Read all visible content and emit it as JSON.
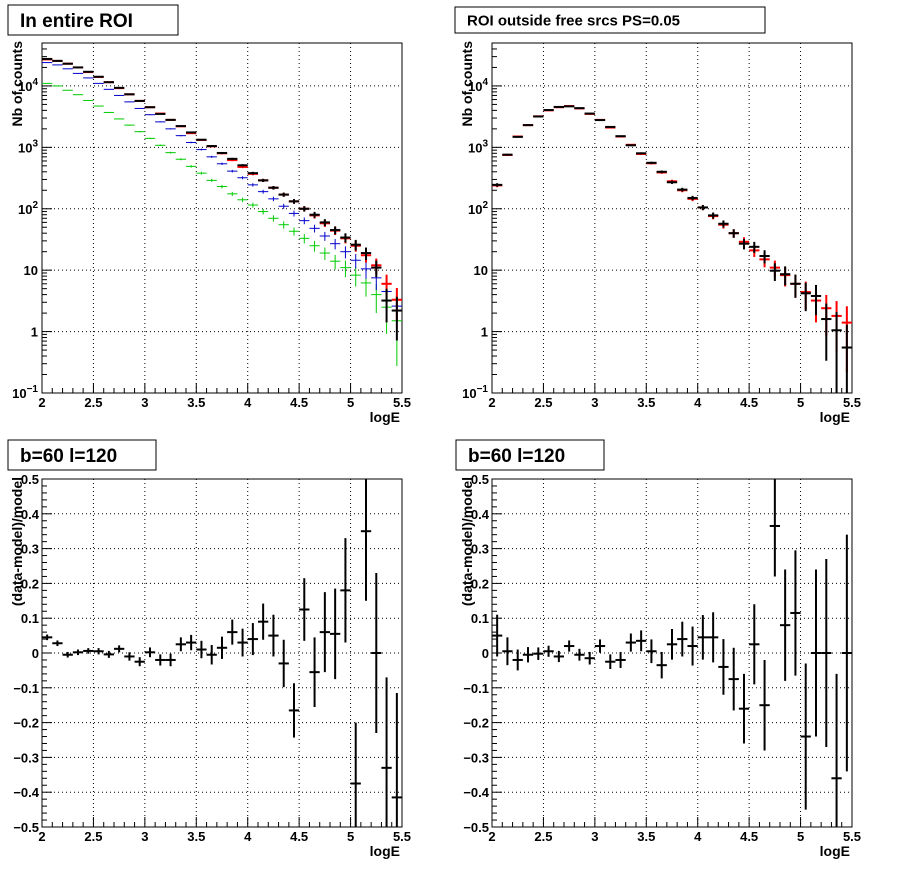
{
  "chart_data": [
    {
      "type": "scatter",
      "title": "In entire ROI",
      "xlabel": "logE",
      "ylabel": "Nb of counts",
      "xlim": [
        2,
        5.5
      ],
      "ylim": [
        0.1,
        50000
      ],
      "yscale": "log",
      "grid": true,
      "x_ticks": [
        "2",
        "2.5",
        "3",
        "3.5",
        "4",
        "4.5",
        "5",
        "5.5"
      ],
      "y_ticks": [
        {
          "value": 0.1,
          "mantissa": "10",
          "exp": "−1"
        },
        {
          "value": 1,
          "mantissa": "1",
          "exp": ""
        },
        {
          "value": 10,
          "mantissa": "10",
          "exp": ""
        },
        {
          "value": 100,
          "mantissa": "10",
          "exp": "2"
        },
        {
          "value": 1000,
          "mantissa": "10",
          "exp": "3"
        },
        {
          "value": 10000,
          "mantissa": "10",
          "exp": "4"
        }
      ],
      "x": [
        2.05,
        2.15,
        2.25,
        2.35,
        2.45,
        2.55,
        2.65,
        2.75,
        2.85,
        2.95,
        3.05,
        3.15,
        3.25,
        3.35,
        3.45,
        3.55,
        3.65,
        3.75,
        3.85,
        3.95,
        4.05,
        4.15,
        4.25,
        4.35,
        4.45,
        4.55,
        4.65,
        4.75,
        4.85,
        4.95,
        5.05,
        5.15,
        5.25,
        5.35,
        5.45
      ],
      "series": [
        {
          "color": "#00cc00",
          "errors": true,
          "values": [
            11000,
            10000,
            8500,
            7200,
            5800,
            4700,
            3700,
            2900,
            2300,
            1800,
            1400,
            1080,
            820,
            640,
            490,
            380,
            290,
            230,
            175,
            140,
            115,
            90,
            70,
            55,
            43,
            33,
            25,
            19,
            14,
            11,
            8.3,
            6.2,
            4.0,
            2.5,
            1.5
          ]
        },
        {
          "color": "#0000cc",
          "errors": true,
          "values": [
            24000,
            22000,
            19000,
            16000,
            13500,
            11000,
            8800,
            7000,
            5500,
            4300,
            3400,
            2600,
            2000,
            1550,
            1200,
            920,
            700,
            540,
            410,
            320,
            245,
            190,
            145,
            110,
            84,
            64,
            48,
            36,
            27,
            20,
            14.5,
            10.5,
            7.5,
            4.5,
            2.6
          ]
        },
        {
          "color": "#ff0000",
          "errors": true,
          "values": [
            27000,
            25500,
            23000,
            20000,
            16800,
            14000,
            11500,
            9200,
            7300,
            5700,
            4500,
            3550,
            2800,
            2200,
            1700,
            1320,
            1040,
            800,
            620,
            480,
            370,
            290,
            220,
            170,
            132,
            100,
            78,
            58,
            44,
            33,
            25,
            17.5,
            12.0,
            6.0,
            3.3
          ]
        },
        {
          "color": "#000000",
          "errors": true,
          "values": [
            27500,
            25600,
            23000,
            20000,
            17000,
            14100,
            11500,
            9300,
            7300,
            5700,
            4500,
            3500,
            2800,
            2220,
            1750,
            1330,
            1050,
            810,
            650,
            510,
            380,
            290,
            220,
            170,
            132,
            100,
            80,
            60,
            45,
            34,
            26,
            19,
            11.0,
            3.2,
            2.2
          ]
        }
      ]
    },
    {
      "type": "scatter",
      "title": "ROI outside free srcs PS=0.05",
      "xlabel": "logE",
      "ylabel": "Nb of counts",
      "xlim": [
        2,
        5.5
      ],
      "ylim": [
        0.1,
        50000
      ],
      "yscale": "log",
      "grid": true,
      "x_ticks": [
        "2",
        "2.5",
        "3",
        "3.5",
        "4",
        "4.5",
        "5",
        "5.5"
      ],
      "y_ticks": [
        {
          "value": 0.1,
          "mantissa": "10",
          "exp": "−1"
        },
        {
          "value": 1,
          "mantissa": "1",
          "exp": ""
        },
        {
          "value": 10,
          "mantissa": "10",
          "exp": ""
        },
        {
          "value": 100,
          "mantissa": "10",
          "exp": "2"
        },
        {
          "value": 1000,
          "mantissa": "10",
          "exp": "3"
        },
        {
          "value": 10000,
          "mantissa": "10",
          "exp": "4"
        }
      ],
      "x": [
        2.05,
        2.15,
        2.25,
        2.35,
        2.45,
        2.55,
        2.65,
        2.75,
        2.85,
        2.95,
        3.05,
        3.15,
        3.25,
        3.35,
        3.45,
        3.55,
        3.65,
        3.75,
        3.85,
        3.95,
        4.05,
        4.15,
        4.25,
        4.35,
        4.45,
        4.55,
        4.65,
        4.75,
        4.85,
        4.95,
        5.05,
        5.15,
        5.25,
        5.35,
        5.45
      ],
      "series": [
        {
          "color": "#ff0000",
          "errors": true,
          "values": [
            240,
            750,
            1500,
            2300,
            3200,
            4000,
            4500,
            4700,
            4300,
            3500,
            2800,
            2100,
            1500,
            1100,
            780,
            550,
            390,
            280,
            200,
            145,
            105,
            76,
            55,
            40,
            29,
            21,
            15,
            11,
            8.3,
            6.0,
            4.4,
            3.2,
            2.4,
            1.8,
            1.4
          ]
        },
        {
          "color": "#000000",
          "errors": true,
          "values": [
            245,
            760,
            1480,
            2300,
            3180,
            4050,
            4550,
            4650,
            4350,
            3550,
            2780,
            2150,
            1520,
            1080,
            800,
            560,
            400,
            270,
            205,
            150,
            105,
            78,
            57,
            40,
            27,
            24,
            17,
            9.8,
            8.6,
            6.0,
            4.2,
            3.8,
            1.6,
            1.05,
            0.55
          ]
        }
      ]
    },
    {
      "type": "scatter",
      "title": "b=60 l=120",
      "xlabel": "logE",
      "ylabel": "(data-model)/model",
      "xlim": [
        2,
        5.5
      ],
      "ylim": [
        -0.5,
        0.5
      ],
      "yscale": "linear",
      "grid": true,
      "x_ticks": [
        "2",
        "2.5",
        "3",
        "3.5",
        "4",
        "4.5",
        "5",
        "5.5"
      ],
      "y_ticks": [
        "−0.5",
        "−0.4",
        "−0.3",
        "−0.2",
        "−0.1",
        "0",
        "0.1",
        "0.2",
        "0.3",
        "0.4",
        "0.5"
      ],
      "x": [
        2.05,
        2.15,
        2.25,
        2.35,
        2.45,
        2.55,
        2.65,
        2.75,
        2.85,
        2.95,
        3.05,
        3.15,
        3.25,
        3.35,
        3.45,
        3.55,
        3.65,
        3.75,
        3.85,
        3.95,
        4.05,
        4.15,
        4.25,
        4.35,
        4.45,
        4.55,
        4.65,
        4.75,
        4.85,
        4.95,
        5.05,
        5.15,
        5.25,
        5.35,
        5.45
      ],
      "series": [
        {
          "color": "#000000",
          "errors": true,
          "values": [
            0.045,
            0.028,
            -0.005,
            0.002,
            0.006,
            0.005,
            -0.004,
            0.012,
            -0.01,
            -0.025,
            0.002,
            -0.02,
            -0.02,
            0.025,
            0.03,
            0.01,
            -0.005,
            0.015,
            0.06,
            0.03,
            0.04,
            0.09,
            0.05,
            -0.03,
            -0.165,
            0.125,
            -0.055,
            0.06,
            0.055,
            0.18,
            -0.375,
            0.35,
            0.0,
            -0.33,
            -0.415
          ],
          "err": [
            0.008,
            0.008,
            0.008,
            0.008,
            0.008,
            0.009,
            0.01,
            0.01,
            0.012,
            0.013,
            0.014,
            0.016,
            0.018,
            0.02,
            0.022,
            0.025,
            0.028,
            0.032,
            0.036,
            0.04,
            0.046,
            0.052,
            0.06,
            0.068,
            0.078,
            0.09,
            0.1,
            0.115,
            0.13,
            0.15,
            0.175,
            0.2,
            0.23,
            0.26,
            0.3
          ]
        }
      ]
    },
    {
      "type": "scatter",
      "title": "b=60 l=120",
      "xlabel": "logE",
      "ylabel": "(data-model)/model",
      "xlim": [
        2,
        5.5
      ],
      "ylim": [
        -0.5,
        0.5
      ],
      "yscale": "linear",
      "grid": true,
      "x_ticks": [
        "2",
        "2.5",
        "3",
        "3.5",
        "4",
        "4.5",
        "5",
        "5.5"
      ],
      "y_ticks": [
        "−0.5",
        "−0.4",
        "−0.3",
        "−0.2",
        "−0.1",
        "0",
        "0.1",
        "0.2",
        "0.3",
        "0.4",
        "0.5"
      ],
      "x": [
        2.05,
        2.15,
        2.25,
        2.35,
        2.45,
        2.55,
        2.65,
        2.75,
        2.85,
        2.95,
        3.05,
        3.15,
        3.25,
        3.35,
        3.45,
        3.55,
        3.65,
        3.75,
        3.85,
        3.95,
        4.05,
        4.15,
        4.25,
        4.35,
        4.45,
        4.55,
        4.65,
        4.75,
        4.85,
        4.95,
        5.05,
        5.15,
        5.25,
        5.35,
        5.45
      ],
      "series": [
        {
          "color": "#000000",
          "errors": true,
          "values": [
            0.05,
            0.005,
            -0.02,
            -0.005,
            -0.002,
            0.005,
            -0.01,
            0.02,
            -0.005,
            -0.015,
            0.02,
            -0.025,
            -0.02,
            0.03,
            0.035,
            0.005,
            -0.035,
            0.025,
            0.04,
            0.02,
            0.045,
            0.045,
            -0.04,
            -0.075,
            -0.16,
            0.025,
            -0.15,
            0.365,
            0.08,
            0.115,
            -0.24,
            0.0,
            0.0,
            -0.36,
            0.0
          ],
          "err": [
            0.06,
            0.04,
            0.03,
            0.022,
            0.018,
            0.016,
            0.016,
            0.016,
            0.017,
            0.018,
            0.019,
            0.021,
            0.023,
            0.026,
            0.03,
            0.034,
            0.038,
            0.044,
            0.05,
            0.056,
            0.064,
            0.072,
            0.08,
            0.09,
            0.1,
            0.115,
            0.13,
            0.145,
            0.16,
            0.18,
            0.21,
            0.24,
            0.27,
            0.3,
            0.34
          ]
        }
      ]
    }
  ]
}
